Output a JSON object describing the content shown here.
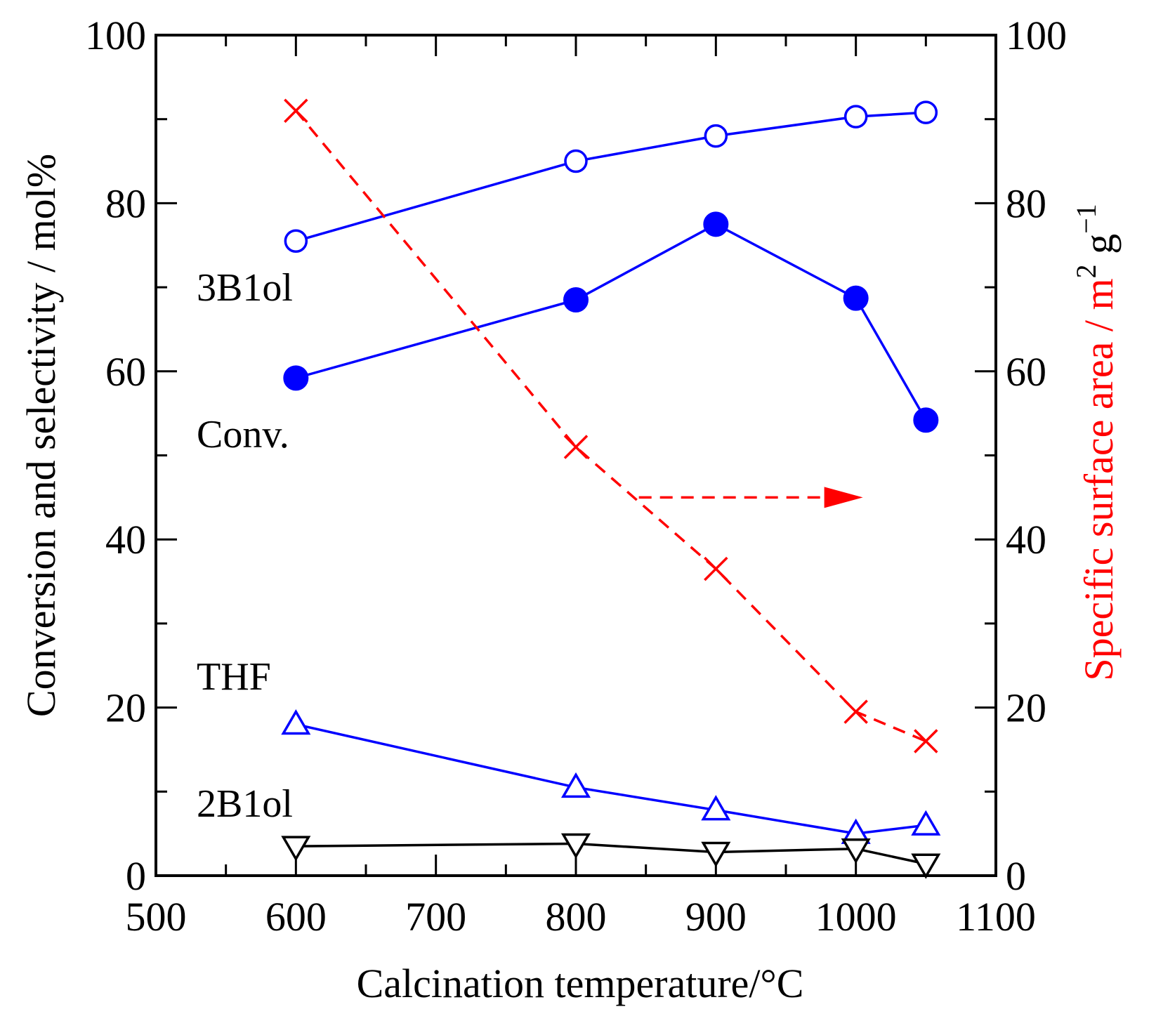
{
  "chart_data": {
    "type": "line",
    "xlabel": "Calcination temperature/°C",
    "ylabel_left": "Conversion and selectivity / mol%",
    "ylabel_right_main": "Specific surface area / m",
    "ylabel_right_sup2": "2",
    "ylabel_right_g": " g",
    "ylabel_right_supm1": "−1",
    "xlim": [
      500,
      1100
    ],
    "ylim_left": [
      0,
      100
    ],
    "ylim_right": [
      0,
      100
    ],
    "xticks": [
      500,
      600,
      700,
      800,
      900,
      1000,
      1100
    ],
    "yticks": [
      0,
      20,
      40,
      60,
      80,
      100
    ],
    "series": [
      {
        "name": "3B1ol",
        "axis": "left",
        "marker": "open-circle",
        "color": "#0000ff",
        "x": [
          600,
          800,
          900,
          1000,
          1050
        ],
        "values": [
          75.5,
          85,
          88,
          90.3,
          90.8
        ]
      },
      {
        "name": "Conv.",
        "axis": "left",
        "marker": "filled-circle",
        "color": "#0000ff",
        "x": [
          600,
          800,
          900,
          1000,
          1050
        ],
        "values": [
          59.2,
          68.5,
          77.5,
          68.7,
          54.2
        ]
      },
      {
        "name": "THF",
        "axis": "left",
        "marker": "open-triangle-up",
        "color": "#0000ff",
        "x": [
          600,
          800,
          900,
          1000,
          1050
        ],
        "values": [
          18,
          10.5,
          7.8,
          5,
          6
        ]
      },
      {
        "name": "2B1ol",
        "axis": "left",
        "marker": "open-triangle-down",
        "color": "#000000",
        "x": [
          600,
          800,
          900,
          1000,
          1050
        ],
        "values": [
          3.5,
          3.8,
          2.8,
          3.2,
          1.4
        ]
      },
      {
        "name": "Specific surface area",
        "axis": "right",
        "marker": "cross",
        "color": "#ff0000",
        "dashed": true,
        "x": [
          600,
          800,
          900,
          1000,
          1050
        ],
        "values": [
          91,
          51,
          36.5,
          19.5,
          16
        ]
      }
    ],
    "annotations": [
      {
        "text": "3B1ol",
        "color": "#0000ff"
      },
      {
        "text": "Conv.",
        "color": "#0000ff"
      },
      {
        "text": "THF",
        "color": "#0000ff"
      },
      {
        "text": "2B1ol",
        "color": "#000000"
      }
    ],
    "arrow": {
      "x_from": 845,
      "x_to": 1005,
      "y": 45,
      "axis": "right",
      "color": "#ff0000"
    },
    "colors": {
      "blue": "#0000ff",
      "red": "#ff0000",
      "black": "#000000"
    }
  }
}
